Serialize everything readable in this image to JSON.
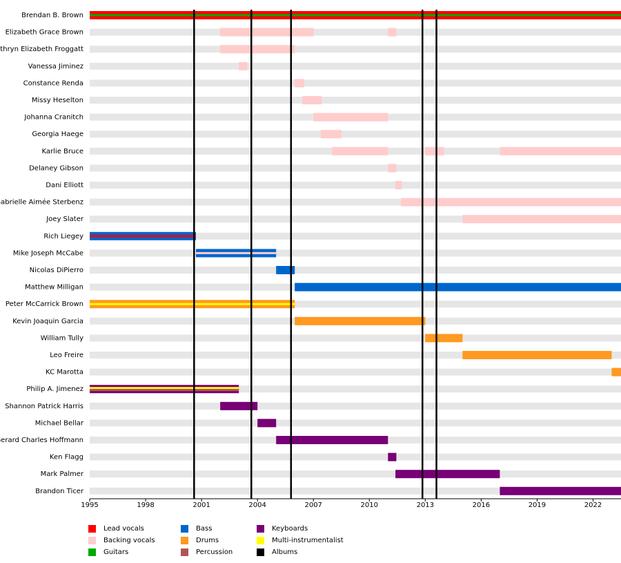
{
  "chart_data": {
    "type": "timeline",
    "xlim": [
      1995,
      2023.5
    ],
    "xticks": [
      1995,
      1998,
      2001,
      2004,
      2007,
      2010,
      2013,
      2016,
      2019,
      2022
    ],
    "roles": [
      {
        "name": "Lead vocals",
        "color": "#ff0000"
      },
      {
        "name": "Backing vocals",
        "color": "#ffcccc"
      },
      {
        "name": "Guitars",
        "color": "#00aa00"
      },
      {
        "name": "Bass",
        "color": "#0066cc"
      },
      {
        "name": "Drums",
        "color": "#ff9922"
      },
      {
        "name": "Percussion",
        "color": "#b05555"
      },
      {
        "name": "Keyboards",
        "color": "#770077"
      },
      {
        "name": "Multi-instrumentalist",
        "color": "#ffff00"
      },
      {
        "name": "Albums",
        "color": "#000000"
      }
    ],
    "albums": [
      2000.6,
      2003.67,
      2005.8,
      2012.85,
      2013.6
    ],
    "members": [
      {
        "name": "Brendan B. Brown",
        "bars": [
          {
            "start": 1995,
            "end": 2023.5,
            "roles": [
              "Lead vocals",
              "Guitars"
            ]
          }
        ]
      },
      {
        "name": "Elizabeth Grace Brown",
        "bars": [
          {
            "start": 2002,
            "end": 2007,
            "roles": [
              "Backing vocals"
            ]
          },
          {
            "start": 2011,
            "end": 2011.45,
            "roles": [
              "Backing vocals"
            ]
          }
        ]
      },
      {
        "name": "Kathryn Elizabeth Froggatt",
        "bars": [
          {
            "start": 2002,
            "end": 2006,
            "roles": [
              "Backing vocals"
            ]
          }
        ]
      },
      {
        "name": "Vanessa Jiminez",
        "bars": [
          {
            "start": 2003,
            "end": 2003.45,
            "roles": [
              "Backing vocals"
            ]
          }
        ]
      },
      {
        "name": "Constance Renda",
        "bars": [
          {
            "start": 2006,
            "end": 2006.5,
            "roles": [
              "Backing vocals"
            ]
          }
        ]
      },
      {
        "name": "Missy Heselton",
        "bars": [
          {
            "start": 2006.4,
            "end": 2007.45,
            "roles": [
              "Backing vocals"
            ]
          }
        ]
      },
      {
        "name": "Johanna Cranitch",
        "bars": [
          {
            "start": 2007,
            "end": 2011,
            "roles": [
              "Backing vocals"
            ]
          }
        ]
      },
      {
        "name": "Georgia Haege",
        "bars": [
          {
            "start": 2007.4,
            "end": 2008.5,
            "roles": [
              "Backing vocals"
            ]
          }
        ]
      },
      {
        "name": "Karlie Bruce",
        "bars": [
          {
            "start": 2008,
            "end": 2011,
            "roles": [
              "Backing vocals"
            ]
          },
          {
            "start": 2013,
            "end": 2014,
            "roles": [
              "Backing vocals"
            ]
          },
          {
            "start": 2017,
            "end": 2023.5,
            "roles": [
              "Backing vocals"
            ]
          }
        ]
      },
      {
        "name": "Delaney Gibson",
        "bars": [
          {
            "start": 2011,
            "end": 2011.45,
            "roles": [
              "Backing vocals"
            ]
          }
        ]
      },
      {
        "name": "Dani Elliott",
        "bars": [
          {
            "start": 2011.4,
            "end": 2011.75,
            "roles": [
              "Backing vocals"
            ]
          }
        ]
      },
      {
        "name": "Gabrielle Aimée Sterbenz",
        "bars": [
          {
            "start": 2011.7,
            "end": 2023.5,
            "roles": [
              "Backing vocals"
            ]
          }
        ]
      },
      {
        "name": "Joey Slater",
        "bars": [
          {
            "start": 2015,
            "end": 2023.5,
            "roles": [
              "Backing vocals"
            ]
          }
        ]
      },
      {
        "name": "Rich Liegey",
        "bars": [
          {
            "start": 1995,
            "end": 2000.7,
            "roles": [
              "Bass",
              "Lead vocals"
            ]
          }
        ]
      },
      {
        "name": "Mike Joseph McCabe",
        "bars": [
          {
            "start": 2000.7,
            "end": 2005,
            "roles": [
              "Bass",
              "Backing vocals"
            ]
          }
        ]
      },
      {
        "name": "Nicolas DiPierro",
        "bars": [
          {
            "start": 2005,
            "end": 2006,
            "roles": [
              "Bass"
            ]
          }
        ]
      },
      {
        "name": "Matthew Milligan",
        "bars": [
          {
            "start": 2006,
            "end": 2023.5,
            "roles": [
              "Bass"
            ]
          }
        ]
      },
      {
        "name": "Peter McCarrick Brown",
        "bars": [
          {
            "start": 1995,
            "end": 2006,
            "roles": [
              "Drums",
              "Multi-instrumentalist"
            ]
          }
        ]
      },
      {
        "name": "Kevin Joaquin Garcia",
        "bars": [
          {
            "start": 2006,
            "end": 2013,
            "roles": [
              "Drums"
            ]
          }
        ]
      },
      {
        "name": "William Tully",
        "bars": [
          {
            "start": 2013,
            "end": 2015,
            "roles": [
              "Drums"
            ]
          }
        ]
      },
      {
        "name": "Leo Freire",
        "bars": [
          {
            "start": 2015,
            "end": 2023,
            "roles": [
              "Drums"
            ]
          }
        ]
      },
      {
        "name": "KC Marotta",
        "bars": [
          {
            "start": 2023,
            "end": 2023.5,
            "roles": [
              "Drums"
            ]
          }
        ]
      },
      {
        "name": "Philip A. Jimenez",
        "bars": [
          {
            "start": 1995,
            "end": 2003,
            "roles": [
              "Keyboards",
              "Multi-instrumentalist",
              "Percussion"
            ]
          }
        ]
      },
      {
        "name": "Shannon Patrick Harris",
        "bars": [
          {
            "start": 2002,
            "end": 2004,
            "roles": [
              "Keyboards"
            ]
          }
        ]
      },
      {
        "name": "Michael Bellar",
        "bars": [
          {
            "start": 2004,
            "end": 2005,
            "roles": [
              "Keyboards"
            ]
          }
        ]
      },
      {
        "name": "Gerard Charles Hoffmann",
        "bars": [
          {
            "start": 2005,
            "end": 2011,
            "roles": [
              "Keyboards"
            ]
          }
        ]
      },
      {
        "name": "Ken Flagg",
        "bars": [
          {
            "start": 2011,
            "end": 2011.45,
            "roles": [
              "Keyboards"
            ]
          }
        ]
      },
      {
        "name": "Mark Palmer",
        "bars": [
          {
            "start": 2011.4,
            "end": 2017,
            "roles": [
              "Keyboards"
            ]
          }
        ]
      },
      {
        "name": "Brandon Ticer",
        "bars": [
          {
            "start": 2017,
            "end": 2023.5,
            "roles": [
              "Keyboards"
            ]
          }
        ]
      }
    ]
  }
}
